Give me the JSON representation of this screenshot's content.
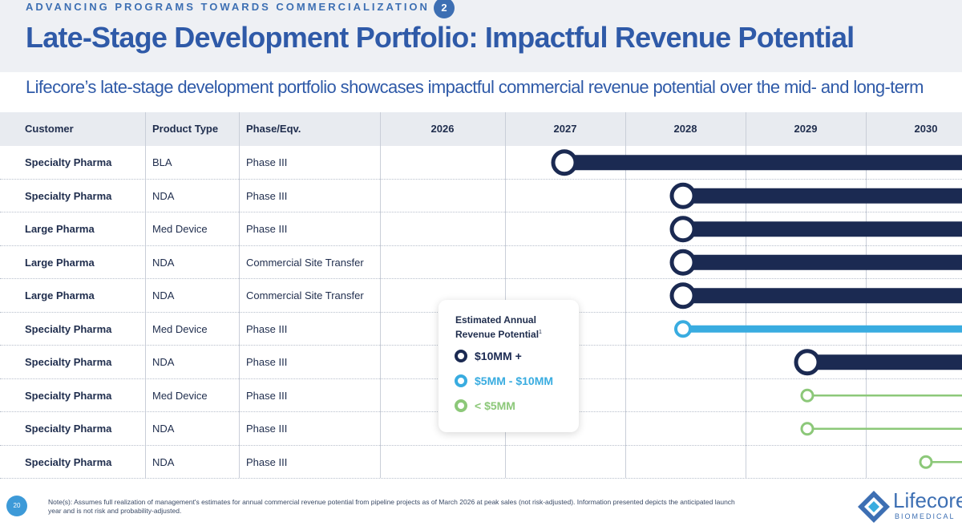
{
  "header": {
    "kicker": "ADVANCING PROGRAMS TOWARDS COMMERCIALIZATION",
    "kicker_number": "2",
    "title": "Late-Stage Development Portfolio: Impactful Revenue Potential",
    "subtitle": "Lifecore’s late-stage development portfolio showcases impactful commercial revenue potential over the mid- and long-term"
  },
  "table": {
    "columns": [
      "Customer",
      "Product Type",
      "Phase/Eqv."
    ],
    "years": [
      "2026",
      "2027",
      "2028",
      "2029",
      "2030"
    ],
    "rows": [
      {
        "customer": "Specialty Pharma",
        "product_type": "BLA",
        "phase": "Phase III",
        "launch_year": 2027,
        "tier": "10mm_plus"
      },
      {
        "customer": "Specialty Pharma",
        "product_type": "NDA",
        "phase": "Phase III",
        "launch_year": 2028,
        "tier": "10mm_plus"
      },
      {
        "customer": "Large Pharma",
        "product_type": "Med Device",
        "phase": "Phase III",
        "launch_year": 2028,
        "tier": "10mm_plus"
      },
      {
        "customer": "Large Pharma",
        "product_type": "NDA",
        "phase": "Commercial Site Transfer",
        "launch_year": 2028,
        "tier": "10mm_plus"
      },
      {
        "customer": "Large Pharma",
        "product_type": "NDA",
        "phase": "Commercial Site Transfer",
        "launch_year": 2028,
        "tier": "10mm_plus"
      },
      {
        "customer": "Specialty Pharma",
        "product_type": "Med Device",
        "phase": "Phase III",
        "launch_year": 2028,
        "tier": "5_to_10mm"
      },
      {
        "customer": "Specialty Pharma",
        "product_type": "NDA",
        "phase": "Phase III",
        "launch_year": 2029,
        "tier": "10mm_plus"
      },
      {
        "customer": "Specialty Pharma",
        "product_type": "Med Device",
        "phase": "Phase III",
        "launch_year": 2029,
        "tier": "under_5mm"
      },
      {
        "customer": "Specialty Pharma",
        "product_type": "NDA",
        "phase": "Phase III",
        "launch_year": 2029,
        "tier": "under_5mm"
      },
      {
        "customer": "Specialty Pharma",
        "product_type": "NDA",
        "phase": "Phase III",
        "launch_year": 2030,
        "tier": "under_5mm"
      }
    ]
  },
  "legend": {
    "title": "Estimated Annual Revenue Potential",
    "footnote_mark": "1",
    "items": [
      {
        "key": "10mm_plus",
        "label": "$10MM +",
        "color": "#1b2a52"
      },
      {
        "key": "5_to_10mm",
        "label": "$5MM - $10MM",
        "color": "#39ace0"
      },
      {
        "key": "under_5mm",
        "label": "< $5MM",
        "color": "#8cc879"
      }
    ]
  },
  "footer": {
    "page_number": "20",
    "note": "Note(s): Assumes full realization of management's estimates for annual commercial revenue potential from pipeline projects as of March 2026 at peak sales (not risk-adjusted). Information presented depicts the anticipated launch year and is not risk and probability-adjusted.",
    "logo_name": "Lifecore",
    "logo_sub": "BIOMEDICAL"
  }
}
